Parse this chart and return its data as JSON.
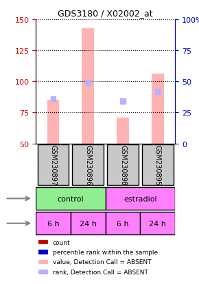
{
  "title": "GDS3180 / X02002_at",
  "samples": [
    "GSM230897",
    "GSM230896",
    "GSM230898",
    "GSM230895"
  ],
  "bar_values": [
    85,
    143,
    71,
    106
  ],
  "bar_colors_absent": [
    "#ffb3b3",
    "#ffb3b3",
    "#ffb3b3",
    "#ffb3b3"
  ],
  "rank_values": [
    86,
    99,
    84,
    92
  ],
  "rank_colors_absent": [
    "#b3b3ff",
    "#b3b3ff",
    "#b3b3ff",
    "#b3b3ff"
  ],
  "ylim_left": [
    50,
    150
  ],
  "ylim_right": [
    0,
    100
  ],
  "left_ticks": [
    50,
    75,
    100,
    125,
    150
  ],
  "right_ticks": [
    0,
    25,
    50,
    75,
    100
  ],
  "right_tick_labels": [
    "0",
    "25",
    "50",
    "75",
    "100%"
  ],
  "agent_labels": [
    "control",
    "estradiol"
  ],
  "time_labels": [
    "6 h",
    "24 h",
    "6 h",
    "24 h"
  ],
  "agent_colors": [
    "#90ee90",
    "#ff80ff"
  ],
  "time_color": "#ff80ff",
  "sample_box_color": "#c8c8c8",
  "legend_items": [
    {
      "label": "count",
      "color": "#cc0000",
      "marker": "s"
    },
    {
      "label": "percentile rank within the sample",
      "color": "#0000cc",
      "marker": "s"
    },
    {
      "label": "value, Detection Call = ABSENT",
      "color": "#ffb3b3",
      "marker": "s"
    },
    {
      "label": "rank, Detection Call = ABSENT",
      "color": "#b3b3ff",
      "marker": "s"
    }
  ],
  "bar_bottom": 50,
  "grid_color": "#000000",
  "left_color": "#cc0000",
  "right_color": "#0000cc"
}
